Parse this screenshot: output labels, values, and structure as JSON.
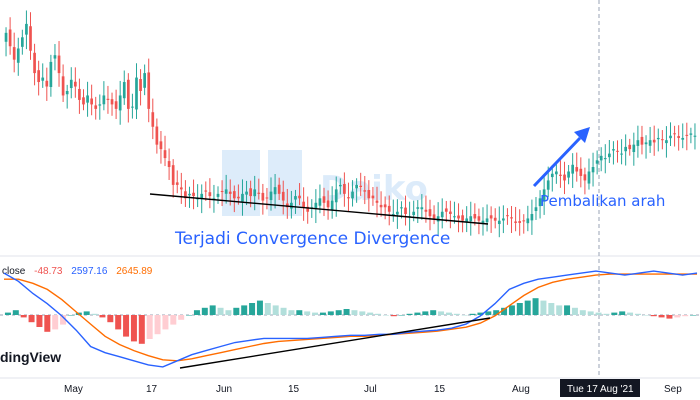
{
  "chart_data": {
    "type": "candlestick",
    "title": "",
    "watermark": "Daiko",
    "brand": "dingView",
    "x_ticks": [
      "May",
      "17",
      "Jun",
      "15",
      "Jul",
      "15",
      "Aug",
      "Sep"
    ],
    "crosshair_label": "Tue 17 Aug '21",
    "annotations": {
      "convergence": "Terjadi Convergence Divergence",
      "reversal": "Pembalikan arah"
    },
    "macd_legend": {
      "label": "close",
      "histogram": "-48.73",
      "macd": "2597.16",
      "signal": "2645.89"
    },
    "colors": {
      "up": "#26a69a",
      "down": "#ef5350",
      "hist_up_strong": "#26a69a",
      "hist_up_weak": "#b2dfdb",
      "hist_down_strong": "#ef5350",
      "hist_down_weak": "#ffcdd2",
      "macd_line": "#2962ff",
      "signal_line": "#ff6d00",
      "annotation": "#2962ff",
      "trendline": "#000000"
    },
    "price_closes": [
      118,
      112,
      106,
      111,
      116,
      122,
      110,
      100,
      96,
      98,
      94,
      105,
      108,
      100,
      90,
      92,
      97,
      94,
      88,
      86,
      90,
      86,
      84,
      86,
      90,
      88,
      86,
      84,
      90,
      96,
      84,
      85,
      98,
      92,
      100,
      84,
      76,
      68,
      66,
      62,
      58,
      50,
      50,
      48,
      44,
      46,
      45,
      44,
      46,
      47,
      45,
      44,
      46,
      47,
      48,
      46,
      44,
      44,
      46,
      47,
      45,
      48,
      46,
      43,
      44,
      47,
      49,
      46,
      43,
      40,
      42,
      45,
      44,
      40,
      38,
      40,
      42,
      44,
      42,
      40,
      43,
      48,
      50,
      46,
      44,
      47,
      50,
      49,
      47,
      44,
      44,
      42,
      40,
      40,
      38,
      37,
      38,
      40,
      37,
      36,
      38,
      40,
      40,
      38,
      36,
      35,
      36,
      38,
      38,
      37,
      36,
      35,
      34,
      35,
      36,
      35,
      34,
      34,
      35,
      35,
      34,
      34,
      35,
      36,
      35,
      33,
      33,
      34,
      35,
      37,
      40,
      44,
      48,
      52,
      55,
      56,
      54,
      52,
      56,
      59,
      56,
      54,
      52,
      56,
      58,
      61,
      63,
      62,
      64,
      66,
      65,
      64,
      67,
      66,
      68,
      70,
      68,
      69,
      70,
      69,
      71,
      70,
      70,
      72,
      73,
      71,
      71,
      72,
      73,
      72
    ],
    "macd_line": [
      20,
      12,
      0,
      -10,
      -22,
      -36,
      -52,
      -58,
      -62,
      -66,
      -70,
      -72,
      -66,
      -60,
      -56,
      -52,
      -48,
      -46,
      -44,
      -44,
      -44,
      -44,
      -43,
      -42,
      -41,
      -41,
      -40,
      -40,
      -38,
      -37,
      -36,
      -34,
      -30,
      -22,
      -10,
      4,
      10,
      14,
      16,
      18,
      20,
      22,
      20,
      18,
      20,
      22,
      20,
      18,
      20
    ],
    "signal_line": [
      14,
      14,
      10,
      4,
      -6,
      -18,
      -30,
      -42,
      -50,
      -56,
      -61,
      -65,
      -66,
      -64,
      -61,
      -58,
      -55,
      -52,
      -49,
      -47,
      -46,
      -45,
      -44,
      -43,
      -42,
      -42,
      -41,
      -40,
      -39,
      -38,
      -37,
      -35,
      -33,
      -29,
      -22,
      -12,
      -2,
      6,
      11,
      14,
      16,
      18,
      19,
      19,
      19,
      19,
      19,
      19,
      19
    ],
    "histogram": [
      2,
      4,
      -2,
      -6,
      -10,
      -14,
      -12,
      -8,
      0,
      2,
      3,
      1,
      -2,
      -6,
      -12,
      -18,
      -22,
      -24,
      -20,
      -16,
      -12,
      -8,
      -4,
      0,
      4,
      6,
      8,
      6,
      4,
      6,
      8,
      10,
      12,
      10,
      8,
      6,
      4,
      4,
      3,
      2,
      2,
      3,
      4,
      5,
      4,
      3,
      2,
      1,
      0,
      -1,
      0,
      1,
      2,
      3,
      4,
      3,
      2,
      1,
      0,
      1,
      2,
      3,
      4,
      6,
      8,
      10,
      12,
      14,
      12,
      10,
      8,
      8,
      6,
      4,
      3,
      2,
      1,
      2,
      3,
      2,
      1,
      0,
      -1,
      -2,
      -3,
      -2,
      -1,
      0
    ]
  }
}
